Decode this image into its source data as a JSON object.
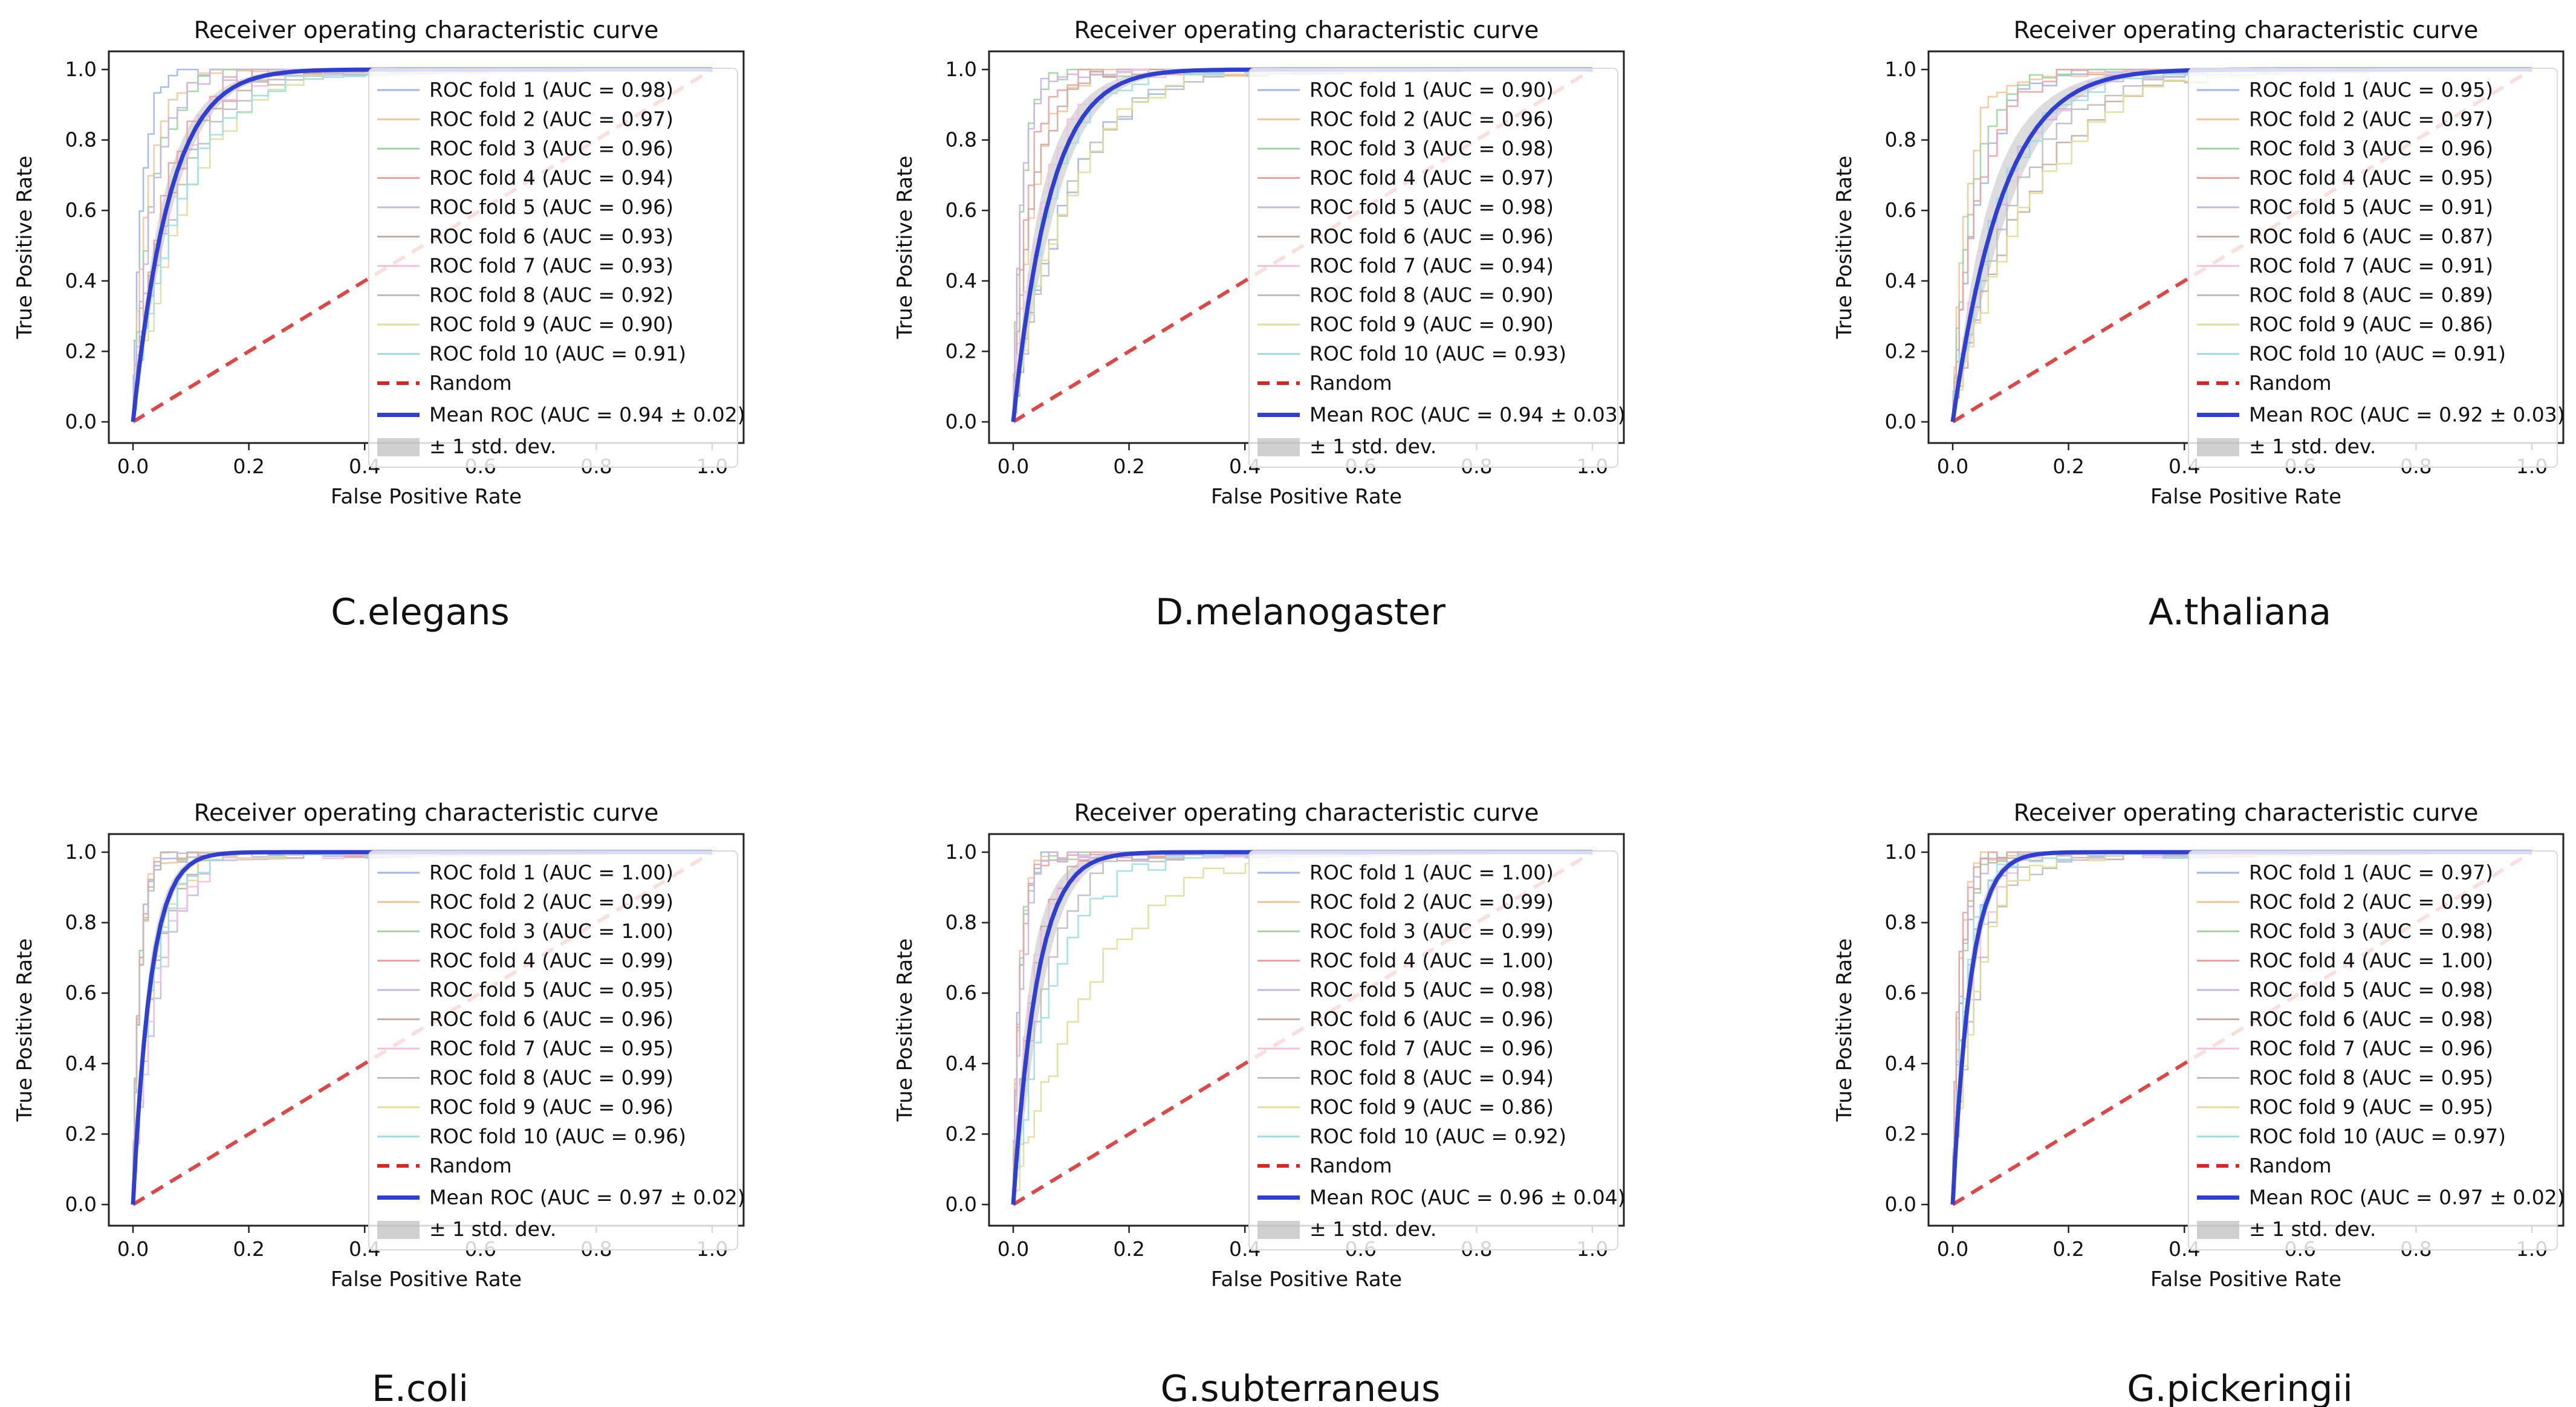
{
  "chart_data": [
    {
      "type": "line",
      "caption": "C.elegans",
      "title": "Receiver operating characteristic curve",
      "xlabel": "False Positive Rate",
      "ylabel": "True Positive Rate",
      "xlim": [
        0.0,
        1.0
      ],
      "ylim": [
        0.0,
        1.0
      ],
      "xticks": [
        "0.0",
        "0.2",
        "0.4",
        "0.6",
        "0.8",
        "1.0"
      ],
      "yticks": [
        "0.0",
        "0.2",
        "0.4",
        "0.6",
        "0.8",
        "1.0"
      ],
      "legend_position": "right",
      "folds": [
        {
          "name": "ROC fold 1",
          "label": "ROC fold 1 (AUC = 0.98)",
          "auc": 0.98,
          "color": "#9fb7e8"
        },
        {
          "name": "ROC fold 2",
          "label": "ROC fold 2 (AUC = 0.97)",
          "auc": 0.97,
          "color": "#f3c59a"
        },
        {
          "name": "ROC fold 3",
          "label": "ROC fold 3 (AUC = 0.96)",
          "auc": 0.96,
          "color": "#9fd49f"
        },
        {
          "name": "ROC fold 4",
          "label": "ROC fold 4 (AUC = 0.94)",
          "auc": 0.94,
          "color": "#e9a3a3"
        },
        {
          "name": "ROC fold 5",
          "label": "ROC fold 5 (AUC = 0.96)",
          "auc": 0.96,
          "color": "#c8b6df"
        },
        {
          "name": "ROC fold 6",
          "label": "ROC fold 6 (AUC = 0.93)",
          "auc": 0.93,
          "color": "#c9aca4"
        },
        {
          "name": "ROC fold 7",
          "label": "ROC fold 7 (AUC = 0.93)",
          "auc": 0.93,
          "color": "#f1bfe0"
        },
        {
          "name": "ROC fold 8",
          "label": "ROC fold 8 (AUC = 0.92)",
          "auc": 0.92,
          "color": "#bdbdbd"
        },
        {
          "name": "ROC fold 9",
          "label": "ROC fold 9 (AUC = 0.90)",
          "auc": 0.9,
          "color": "#dede9a"
        },
        {
          "name": "ROC fold 10",
          "label": "ROC fold 10 (AUC = 0.91)",
          "auc": 0.91,
          "color": "#9fdde6"
        }
      ],
      "random_label": "Random",
      "mean": {
        "label": "Mean ROC (AUC = 0.94 ± 0.02)",
        "auc": 0.94,
        "std": 0.02,
        "color": "#2f3fd0"
      },
      "std_label": "± 1 std. dev.",
      "random_color": "#d62728"
    },
    {
      "type": "line",
      "caption": "D.melanogaster",
      "title": "Receiver operating characteristic curve",
      "xlabel": "False Positive Rate",
      "ylabel": "True Positive Rate",
      "xlim": [
        0.0,
        1.0
      ],
      "ylim": [
        0.0,
        1.0
      ],
      "xticks": [
        "0.0",
        "0.2",
        "0.4",
        "0.6",
        "0.8",
        "1.0"
      ],
      "yticks": [
        "0.0",
        "0.2",
        "0.4",
        "0.6",
        "0.8",
        "1.0"
      ],
      "legend_position": "right",
      "folds": [
        {
          "name": "ROC fold 1",
          "label": "ROC fold 1 (AUC = 0.90)",
          "auc": 0.9,
          "color": "#9fb7e8"
        },
        {
          "name": "ROC fold 2",
          "label": "ROC fold 2 (AUC = 0.96)",
          "auc": 0.96,
          "color": "#f3c59a"
        },
        {
          "name": "ROC fold 3",
          "label": "ROC fold 3 (AUC = 0.98)",
          "auc": 0.98,
          "color": "#9fd49f"
        },
        {
          "name": "ROC fold 4",
          "label": "ROC fold 4 (AUC = 0.97)",
          "auc": 0.97,
          "color": "#e9a3a3"
        },
        {
          "name": "ROC fold 5",
          "label": "ROC fold 5 (AUC = 0.98)",
          "auc": 0.98,
          "color": "#c8b6df"
        },
        {
          "name": "ROC fold 6",
          "label": "ROC fold 6 (AUC = 0.96)",
          "auc": 0.96,
          "color": "#c9aca4"
        },
        {
          "name": "ROC fold 7",
          "label": "ROC fold 7 (AUC = 0.94)",
          "auc": 0.94,
          "color": "#f1bfe0"
        },
        {
          "name": "ROC fold 8",
          "label": "ROC fold 8 (AUC = 0.90)",
          "auc": 0.9,
          "color": "#bdbdbd"
        },
        {
          "name": "ROC fold 9",
          "label": "ROC fold 9 (AUC = 0.90)",
          "auc": 0.9,
          "color": "#dede9a"
        },
        {
          "name": "ROC fold 10",
          "label": "ROC fold 10 (AUC = 0.93)",
          "auc": 0.93,
          "color": "#9fdde6"
        }
      ],
      "random_label": "Random",
      "mean": {
        "label": "Mean ROC (AUC = 0.94 ± 0.03)",
        "auc": 0.94,
        "std": 0.03,
        "color": "#2f3fd0"
      },
      "std_label": "± 1 std. dev.",
      "random_color": "#d62728"
    },
    {
      "type": "line",
      "caption": "A.thaliana",
      "title": "Receiver operating characteristic curve",
      "xlabel": "False Positive Rate",
      "ylabel": "True Positive Rate",
      "xlim": [
        0.0,
        1.0
      ],
      "ylim": [
        0.0,
        1.0
      ],
      "xticks": [
        "0.0",
        "0.2",
        "0.4",
        "0.6",
        "0.8",
        "1.0"
      ],
      "yticks": [
        "0.0",
        "0.2",
        "0.4",
        "0.6",
        "0.8",
        "1.0"
      ],
      "legend_position": "right",
      "folds": [
        {
          "name": "ROC fold 1",
          "label": "ROC fold 1 (AUC = 0.95)",
          "auc": 0.95,
          "color": "#9fb7e8"
        },
        {
          "name": "ROC fold 2",
          "label": "ROC fold 2 (AUC = 0.97)",
          "auc": 0.97,
          "color": "#f3c59a"
        },
        {
          "name": "ROC fold 3",
          "label": "ROC fold 3 (AUC = 0.96)",
          "auc": 0.96,
          "color": "#9fd49f"
        },
        {
          "name": "ROC fold 4",
          "label": "ROC fold 4 (AUC = 0.95)",
          "auc": 0.95,
          "color": "#e9a3a3"
        },
        {
          "name": "ROC fold 5",
          "label": "ROC fold 5 (AUC = 0.91)",
          "auc": 0.91,
          "color": "#c8b6df"
        },
        {
          "name": "ROC fold 6",
          "label": "ROC fold 6 (AUC = 0.87)",
          "auc": 0.87,
          "color": "#c9aca4"
        },
        {
          "name": "ROC fold 7",
          "label": "ROC fold 7 (AUC = 0.91)",
          "auc": 0.91,
          "color": "#f1bfe0"
        },
        {
          "name": "ROC fold 8",
          "label": "ROC fold 8 (AUC = 0.89)",
          "auc": 0.89,
          "color": "#bdbdbd"
        },
        {
          "name": "ROC fold 9",
          "label": "ROC fold 9 (AUC = 0.86)",
          "auc": 0.86,
          "color": "#dede9a"
        },
        {
          "name": "ROC fold 10",
          "label": "ROC fold 10 (AUC = 0.91)",
          "auc": 0.91,
          "color": "#9fdde6"
        }
      ],
      "random_label": "Random",
      "mean": {
        "label": "Mean ROC (AUC = 0.92 ± 0.03)",
        "auc": 0.92,
        "std": 0.03,
        "color": "#2f3fd0"
      },
      "std_label": "± 1 std. dev.",
      "random_color": "#d62728"
    },
    {
      "type": "line",
      "caption": "E.coli",
      "title": "Receiver operating characteristic curve",
      "xlabel": "False Positive Rate",
      "ylabel": "True Positive Rate",
      "xlim": [
        0.0,
        1.0
      ],
      "ylim": [
        0.0,
        1.0
      ],
      "xticks": [
        "0.0",
        "0.2",
        "0.4",
        "0.6",
        "0.8",
        "1.0"
      ],
      "yticks": [
        "0.0",
        "0.2",
        "0.4",
        "0.6",
        "0.8",
        "1.0"
      ],
      "legend_position": "right",
      "folds": [
        {
          "name": "ROC fold 1",
          "label": "ROC fold 1 (AUC = 1.00)",
          "auc": 1.0,
          "color": "#9fb7e8"
        },
        {
          "name": "ROC fold 2",
          "label": "ROC fold 2 (AUC = 0.99)",
          "auc": 0.99,
          "color": "#f3c59a"
        },
        {
          "name": "ROC fold 3",
          "label": "ROC fold 3 (AUC = 1.00)",
          "auc": 1.0,
          "color": "#9fd49f"
        },
        {
          "name": "ROC fold 4",
          "label": "ROC fold 4 (AUC = 0.99)",
          "auc": 0.99,
          "color": "#e9a3a3"
        },
        {
          "name": "ROC fold 5",
          "label": "ROC fold 5 (AUC = 0.95)",
          "auc": 0.95,
          "color": "#c8b6df"
        },
        {
          "name": "ROC fold 6",
          "label": "ROC fold 6 (AUC = 0.96)",
          "auc": 0.96,
          "color": "#c9aca4"
        },
        {
          "name": "ROC fold 7",
          "label": "ROC fold 7 (AUC = 0.95)",
          "auc": 0.95,
          "color": "#f1bfe0"
        },
        {
          "name": "ROC fold 8",
          "label": "ROC fold 8 (AUC = 0.99)",
          "auc": 0.99,
          "color": "#bdbdbd"
        },
        {
          "name": "ROC fold 9",
          "label": "ROC fold 9 (AUC = 0.96)",
          "auc": 0.96,
          "color": "#dede9a"
        },
        {
          "name": "ROC fold 10",
          "label": "ROC fold 10 (AUC = 0.96)",
          "auc": 0.96,
          "color": "#9fdde6"
        }
      ],
      "random_label": "Random",
      "mean": {
        "label": "Mean ROC (AUC = 0.97 ± 0.02)",
        "auc": 0.97,
        "std": 0.02,
        "color": "#2f3fd0"
      },
      "std_label": "± 1 std. dev.",
      "random_color": "#d62728"
    },
    {
      "type": "line",
      "caption": "G.subterraneus",
      "title": "Receiver operating characteristic curve",
      "xlabel": "False Positive Rate",
      "ylabel": "True Positive Rate",
      "xlim": [
        0.0,
        1.0
      ],
      "ylim": [
        0.0,
        1.0
      ],
      "xticks": [
        "0.0",
        "0.2",
        "0.4",
        "0.6",
        "0.8",
        "1.0"
      ],
      "yticks": [
        "0.0",
        "0.2",
        "0.4",
        "0.6",
        "0.8",
        "1.0"
      ],
      "legend_position": "right",
      "folds": [
        {
          "name": "ROC fold 1",
          "label": "ROC fold 1 (AUC = 1.00)",
          "auc": 1.0,
          "color": "#9fb7e8"
        },
        {
          "name": "ROC fold 2",
          "label": "ROC fold 2 (AUC = 0.99)",
          "auc": 0.99,
          "color": "#f3c59a"
        },
        {
          "name": "ROC fold 3",
          "label": "ROC fold 3 (AUC = 0.99)",
          "auc": 0.99,
          "color": "#9fd49f"
        },
        {
          "name": "ROC fold 4",
          "label": "ROC fold 4 (AUC = 1.00)",
          "auc": 1.0,
          "color": "#e9a3a3"
        },
        {
          "name": "ROC fold 5",
          "label": "ROC fold 5 (AUC = 0.98)",
          "auc": 0.98,
          "color": "#c8b6df"
        },
        {
          "name": "ROC fold 6",
          "label": "ROC fold 6 (AUC = 0.96)",
          "auc": 0.96,
          "color": "#c9aca4"
        },
        {
          "name": "ROC fold 7",
          "label": "ROC fold 7 (AUC = 0.96)",
          "auc": 0.96,
          "color": "#f1bfe0"
        },
        {
          "name": "ROC fold 8",
          "label": "ROC fold 8 (AUC = 0.94)",
          "auc": 0.94,
          "color": "#bdbdbd"
        },
        {
          "name": "ROC fold 9",
          "label": "ROC fold 9 (AUC = 0.86)",
          "auc": 0.86,
          "color": "#dede9a"
        },
        {
          "name": "ROC fold 10",
          "label": "ROC fold 10 (AUC = 0.92)",
          "auc": 0.92,
          "color": "#9fdde6"
        }
      ],
      "random_label": "Random",
      "mean": {
        "label": "Mean ROC (AUC = 0.96 ± 0.04)",
        "auc": 0.96,
        "std": 0.04,
        "color": "#2f3fd0"
      },
      "std_label": "± 1 std. dev.",
      "random_color": "#d62728"
    },
    {
      "type": "line",
      "caption": "G.pickeringii",
      "title": "Receiver operating characteristic curve",
      "xlabel": "False Positive Rate",
      "ylabel": "True Positive Rate",
      "xlim": [
        0.0,
        1.0
      ],
      "ylim": [
        0.0,
        1.0
      ],
      "xticks": [
        "0.0",
        "0.2",
        "0.4",
        "0.6",
        "0.8",
        "1.0"
      ],
      "yticks": [
        "0.0",
        "0.2",
        "0.4",
        "0.6",
        "0.8",
        "1.0"
      ],
      "legend_position": "right",
      "folds": [
        {
          "name": "ROC fold 1",
          "label": "ROC fold 1 (AUC = 0.97)",
          "auc": 0.97,
          "color": "#9fb7e8"
        },
        {
          "name": "ROC fold 2",
          "label": "ROC fold 2 (AUC = 0.99)",
          "auc": 0.99,
          "color": "#f3c59a"
        },
        {
          "name": "ROC fold 3",
          "label": "ROC fold 3 (AUC = 0.98)",
          "auc": 0.98,
          "color": "#9fd49f"
        },
        {
          "name": "ROC fold 4",
          "label": "ROC fold 4 (AUC = 1.00)",
          "auc": 1.0,
          "color": "#e9a3a3"
        },
        {
          "name": "ROC fold 5",
          "label": "ROC fold 5 (AUC = 0.98)",
          "auc": 0.98,
          "color": "#c8b6df"
        },
        {
          "name": "ROC fold 6",
          "label": "ROC fold 6 (AUC = 0.98)",
          "auc": 0.98,
          "color": "#c9aca4"
        },
        {
          "name": "ROC fold 7",
          "label": "ROC fold 7 (AUC = 0.96)",
          "auc": 0.96,
          "color": "#f1bfe0"
        },
        {
          "name": "ROC fold 8",
          "label": "ROC fold 8 (AUC = 0.95)",
          "auc": 0.95,
          "color": "#bdbdbd"
        },
        {
          "name": "ROC fold 9",
          "label": "ROC fold 9 (AUC = 0.95)",
          "auc": 0.95,
          "color": "#dede9a"
        },
        {
          "name": "ROC fold 10",
          "label": "ROC fold 10 (AUC = 0.97)",
          "auc": 0.97,
          "color": "#9fdde6"
        }
      ],
      "random_label": "Random",
      "mean": {
        "label": "Mean ROC (AUC = 0.97 ± 0.02)",
        "auc": 0.97,
        "std": 0.02,
        "color": "#2f3fd0"
      },
      "std_label": "± 1 std. dev.",
      "random_color": "#d62728"
    }
  ]
}
